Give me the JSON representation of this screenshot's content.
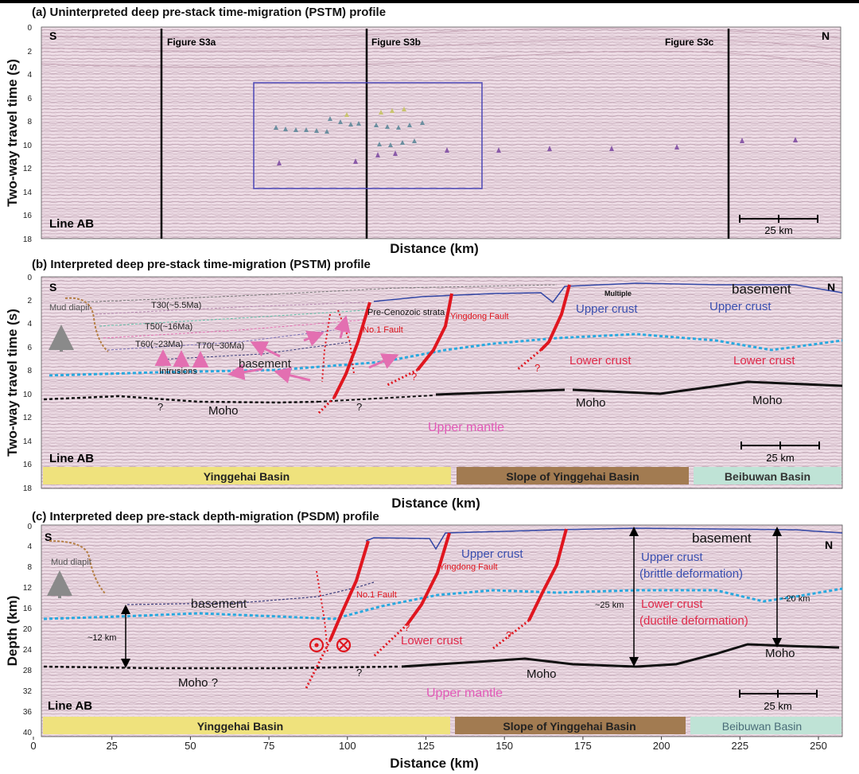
{
  "panels": {
    "a": {
      "title": "(a) Uninterpreted deep pre-stack time-migration (PSTM) profile",
      "ylabel": "Two-way travel time (s)",
      "xlabel": "Distance (km)",
      "yticks": [
        "0",
        "2",
        "4",
        "6",
        "8",
        "10",
        "12",
        "14",
        "16",
        "18"
      ],
      "south": "S",
      "north": "N",
      "line": "Line AB",
      "scale": "25 km",
      "fig_markers": [
        "Figure S3a",
        "Figure S3b",
        "Figure S3c"
      ]
    },
    "b": {
      "title": "(b) Interpreted deep pre-stack time-migration (PSTM) profile",
      "ylabel": "Two-way travel time (s)",
      "xlabel": "Distance (km)",
      "yticks": [
        "0",
        "2",
        "4",
        "6",
        "8",
        "10",
        "12",
        "14",
        "16",
        "18"
      ],
      "south": "S",
      "north": "N",
      "line": "Line AB",
      "scale": "25 km",
      "labels": {
        "mud_diapir": "Mud diapir",
        "t30": "T30(~5.5Ma)",
        "t50": "T50(~16Ma)",
        "t60": "T60(~23Ma)",
        "t70": "T70(~30Ma)",
        "intrusions": "Intrusions",
        "basement_mid": "basement",
        "pre_cenozoic": "Pre-Cenozoic strata",
        "no1_fault": "No.1 Fault",
        "yingdong_fault": "Yingdong Fault",
        "multiple": "Multiple",
        "basement_top": "basement",
        "upper_crust_1": "Upper crust",
        "upper_crust_2": "Upper crust",
        "lower_crust_1": "Lower crust",
        "lower_crust_2": "Lower crust",
        "moho_1": "Moho",
        "moho_2": "Moho",
        "moho_3": "Moho",
        "upper_mantle": "Upper mantle",
        "q": "?"
      },
      "basins": [
        "Yinggehai Basin",
        "Slope of Yinggehai Basin",
        "Beibuwan Basin"
      ]
    },
    "c": {
      "title": "(c) Interpreted deep pre-stack depth-migration (PSDM) profile",
      "ylabel": "Depth (km)",
      "xlabel": "Distance (km)",
      "yticks": [
        "0",
        "4",
        "8",
        "12",
        "16",
        "20",
        "24",
        "28",
        "32",
        "36",
        "40"
      ],
      "xticks": [
        "0",
        "25",
        "50",
        "75",
        "100",
        "125",
        "150",
        "175",
        "200",
        "225",
        "250"
      ],
      "south": "S",
      "north": "N",
      "line": "Line AB",
      "scale": "25 km",
      "labels": {
        "mud_diapir": "Mud diapir",
        "basement_mid": "basement",
        "thick_12": "~12 km",
        "no1_fault": "No.1 Fault",
        "yingdong_fault": "Yingdong Fault",
        "upper_crust": "Upper crust",
        "basement_top": "basement",
        "upper_crust_brittle": "Upper crust",
        "brittle": "(brittle deformation)",
        "lower_crust_ductile": "Lower crust",
        "ductile": "(ductile deformation)",
        "thick_25": "~25 km",
        "thick_20": "~20 km",
        "lower_crust": "Lower crust",
        "moho_q": "Moho ?",
        "moho_1": "Moho",
        "moho_2": "Moho",
        "upper_mantle": "Upper mantle",
        "q": "?"
      },
      "basins": [
        "Yinggehai Basin",
        "Slope of Yinggehai Basin",
        "Beibuwan Basin"
      ]
    }
  },
  "colors": {
    "seismic_bg": "#eedde6",
    "fault": "#e0161f",
    "lower_crust_line": "#29a9df",
    "moho": "#111111",
    "basement_line": "#3347a6",
    "upper_crust_text": "#3a4fb0",
    "lower_crust_text": "#e0294a",
    "upper_mantle_text": "#e25ab8",
    "yinggehai": "#efe27d",
    "slope": "#a27b51",
    "beibuwan": "#bfe3d6",
    "mud_diapir": "#b57f45",
    "pink_arrow": "#e36fb1",
    "box": "#4c47b6"
  }
}
